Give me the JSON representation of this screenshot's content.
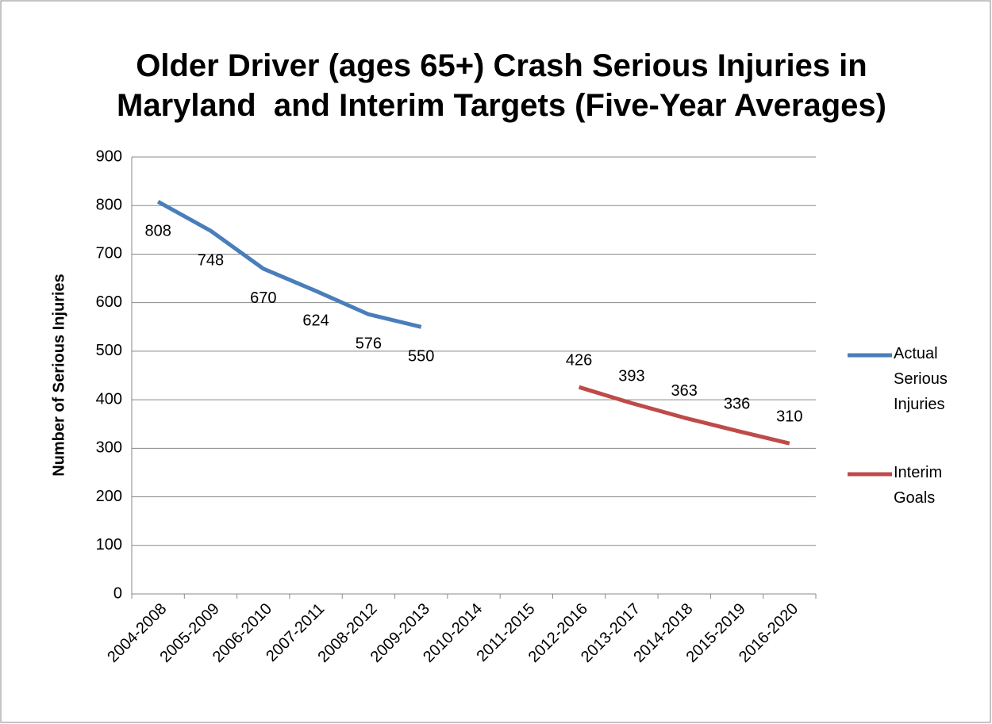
{
  "chart_data": {
    "type": "line",
    "title": "Older Driver (ages 65+) Crash Serious Injuries in Maryland  and Interim Targets (Five-Year Averages)",
    "y_label": "Number of Serious Injuries",
    "categories": [
      "2004-2008",
      "2005-2009",
      "2006-2010",
      "2007-2011",
      "2008-2012",
      "2009-2013",
      "2010-2014",
      "2011-2015",
      "2012-2016",
      "2013-2017",
      "2014-2018",
      "2015-2019",
      "2016-2020"
    ],
    "series": [
      {
        "name": "Actual Serious Injuries",
        "color": "#4a7ebb",
        "values": [
          808,
          748,
          670,
          624,
          576,
          550,
          null,
          null,
          null,
          null,
          null,
          null,
          null
        ]
      },
      {
        "name": "Interim Goals",
        "color": "#be4b48",
        "values": [
          null,
          null,
          null,
          null,
          null,
          null,
          null,
          null,
          426,
          393,
          363,
          336,
          310
        ]
      }
    ],
    "ylim": [
      0,
      900
    ],
    "yticks": [
      0,
      100,
      200,
      300,
      400,
      500,
      600,
      700,
      800,
      900
    ],
    "grid": true,
    "legend": "right"
  }
}
